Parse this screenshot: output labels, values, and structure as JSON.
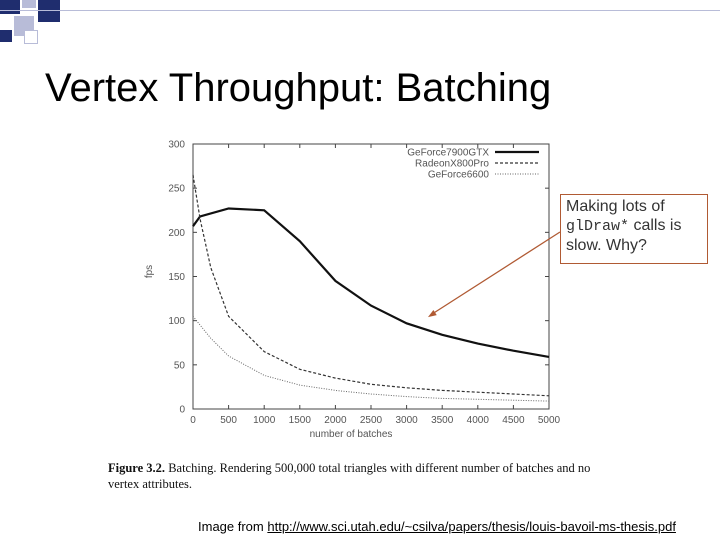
{
  "slide": {
    "title": "Vertex Throughput:  Batching"
  },
  "callout": {
    "text_before": "Making lots of ",
    "code": "glDraw*",
    "text_after": " calls is slow.  Why?",
    "border_color": "#b05a33"
  },
  "caption": {
    "label": "Figure 3.2.",
    "text": " Batching. Rendering 500,000 total triangles with different number of batches and no vertex attributes."
  },
  "source": {
    "prefix": "Image from ",
    "link": "http://www.sci.utah.edu/~csilva/papers/thesis/louis-bavoil-ms-thesis.pdf"
  },
  "colors": {
    "accent_dark": "#1f2d6e",
    "accent_light": "#b8bcd8",
    "arrow": "#b05a33"
  },
  "chart_data": {
    "type": "line",
    "title": "",
    "xlabel": "number of batches",
    "ylabel": "fps",
    "xlim": [
      0,
      5000
    ],
    "ylim": [
      0,
      300
    ],
    "xticks": [
      "0",
      "500",
      "1000",
      "1500",
      "2000",
      "2500",
      "3000",
      "3500",
      "4000",
      "4500",
      "5000"
    ],
    "yticks": [
      "0",
      "50",
      "100",
      "150",
      "200",
      "250",
      "300"
    ],
    "legend_position": "top-right",
    "grid": false,
    "series": [
      {
        "name": "GeForce7900GTX",
        "style": "solid-thick",
        "x": [
          0,
          100,
          500,
          1000,
          1500,
          2000,
          2500,
          3000,
          3500,
          4000,
          4500,
          5000
        ],
        "y": [
          207,
          218,
          227,
          225,
          190,
          145,
          117,
          97,
          84,
          74,
          66,
          59
        ]
      },
      {
        "name": "RadeonX800Pro",
        "style": "dashed",
        "x": [
          0,
          100,
          250,
          500,
          1000,
          1500,
          2000,
          2500,
          3000,
          3500,
          4000,
          4500,
          5000
        ],
        "y": [
          265,
          215,
          160,
          105,
          65,
          45,
          35,
          28,
          24,
          21,
          19,
          17,
          15
        ]
      },
      {
        "name": "GeForce6600",
        "style": "dotted",
        "x": [
          0,
          100,
          250,
          500,
          1000,
          1500,
          2000,
          2500,
          3000,
          3500,
          4000,
          4500,
          5000
        ],
        "y": [
          105,
          95,
          80,
          60,
          38,
          27,
          21,
          17,
          14,
          12,
          11,
          10,
          9
        ]
      }
    ],
    "annotation": {
      "target": [
        3300,
        104
      ]
    }
  }
}
